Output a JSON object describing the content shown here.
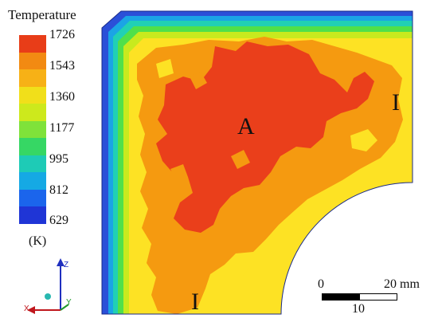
{
  "legend": {
    "title": "Temperature",
    "unit": "(K)",
    "ticks": [
      "1726",
      "1543",
      "1360",
      "1177",
      "995",
      "812",
      "629"
    ],
    "colors": [
      "#e83d18",
      "#f28a12",
      "#f7b116",
      "#f1df1a",
      "#cde91c",
      "#7fe23a",
      "#36d764",
      "#1ecbb6",
      "#15a9e4",
      "#1b65ec",
      "#1f35d6"
    ]
  },
  "map_colors": {
    "outer_band_1": "#2b4fd8",
    "outer_band_2": "#1ba4e5",
    "outer_band_3": "#21d0b5",
    "outer_band_4": "#50e04a",
    "outer_band_5": "#c8ea1e",
    "yellow_zone": "#fde224",
    "orange_zone": "#f59a10",
    "red_zone": "#ea3f1b"
  },
  "labels": {
    "region_a": "A",
    "region_i_right": "I",
    "region_i_bottom": "I"
  },
  "scale": {
    "left_label": "0",
    "right_label": "20 mm",
    "mid_label": "10"
  },
  "axes": {
    "z": "Z",
    "x": "X",
    "y": "Y"
  }
}
